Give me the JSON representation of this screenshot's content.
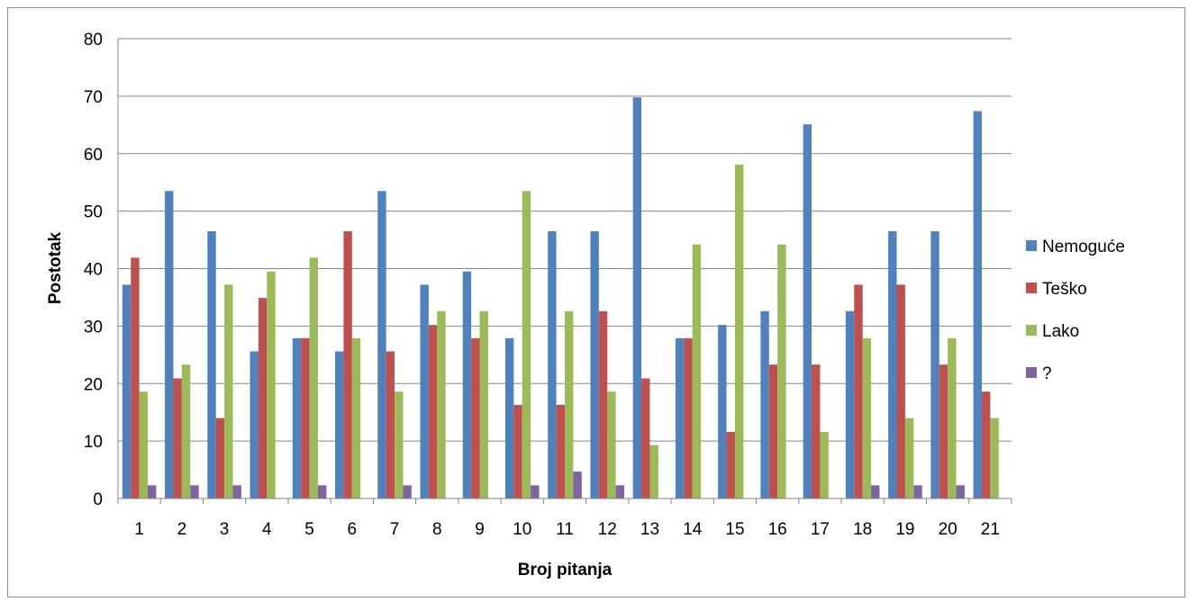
{
  "chart_data": {
    "type": "bar",
    "xlabel": "Broj pitanja",
    "ylabel": "Postotak",
    "ylim": [
      0,
      80
    ],
    "yticks": [
      0,
      10,
      20,
      30,
      40,
      50,
      60,
      70,
      80
    ],
    "grid": true,
    "legend_position": "right",
    "categories": [
      "1",
      "2",
      "3",
      "4",
      "5",
      "6",
      "7",
      "8",
      "9",
      "10",
      "11",
      "12",
      "13",
      "14",
      "15",
      "16",
      "17",
      "18",
      "19",
      "20",
      "21"
    ],
    "series": [
      {
        "name": "Nemoguće",
        "color": "#4F81BD",
        "values": [
          37.2,
          53.5,
          46.5,
          25.6,
          27.9,
          25.6,
          53.5,
          37.2,
          39.5,
          27.9,
          46.5,
          46.5,
          69.8,
          27.9,
          30.2,
          32.6,
          65.1,
          32.6,
          46.5,
          46.5,
          67.4
        ]
      },
      {
        "name": "Teško",
        "color": "#C0504D",
        "values": [
          41.9,
          20.9,
          14.0,
          34.9,
          27.9,
          46.5,
          25.6,
          30.2,
          27.9,
          16.3,
          16.3,
          32.6,
          20.9,
          27.9,
          11.6,
          23.3,
          23.3,
          37.2,
          37.2,
          23.3,
          18.6
        ]
      },
      {
        "name": "Lako",
        "color": "#9BBB59",
        "values": [
          18.6,
          23.3,
          37.2,
          39.5,
          41.9,
          27.9,
          18.6,
          32.6,
          32.6,
          53.5,
          32.6,
          18.6,
          9.3,
          44.2,
          58.1,
          44.2,
          11.6,
          27.9,
          14.0,
          27.9,
          14.0
        ]
      },
      {
        "name": "?",
        "color": "#8064A2",
        "values": [
          2.3,
          2.3,
          2.3,
          0,
          2.3,
          0,
          2.3,
          0,
          0,
          2.3,
          4.7,
          2.3,
          0,
          0,
          0,
          0,
          0,
          2.3,
          2.3,
          2.3,
          0
        ]
      }
    ]
  }
}
